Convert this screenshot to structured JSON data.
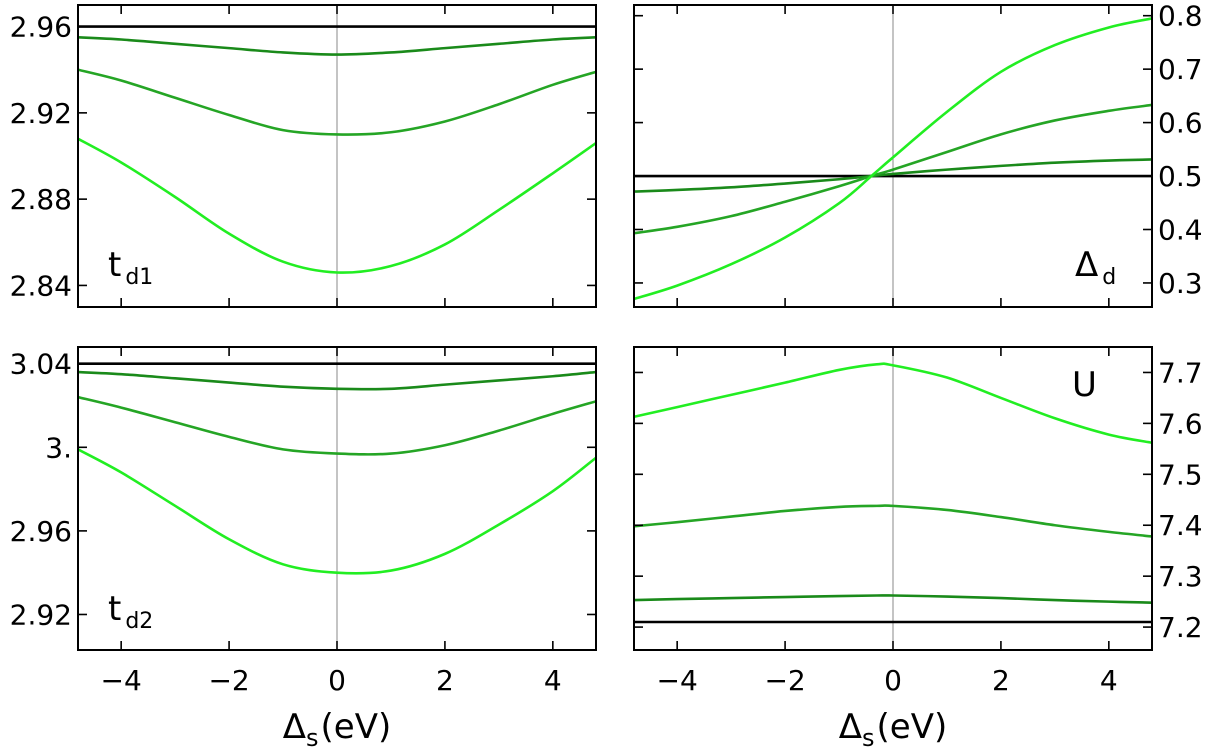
{
  "colors": {
    "black": "#000000",
    "dark_green": "#1a8a1a",
    "mid_green": "#25a525",
    "light_green": "#22ee22",
    "center_line": "#888888"
  },
  "chart_data": [
    {
      "type": "line",
      "panel": "top-left",
      "label_main": "t",
      "label_sub": "d1",
      "xlim": [
        -4.8,
        4.8
      ],
      "ylim": [
        2.83,
        2.97
      ],
      "y_axis_side": "left",
      "x_ticks": [
        -4,
        -2,
        0,
        2,
        4
      ],
      "x_ticks_show_labels": false,
      "y_ticks": [
        {
          "value": 2.84,
          "label": "2.84"
        },
        {
          "value": 2.88,
          "label": "2.88"
        },
        {
          "value": 2.92,
          "label": "2.92"
        },
        {
          "value": 2.96,
          "label": "2.96"
        }
      ],
      "series": [
        {
          "color_key": "black",
          "x": [
            -4.8,
            0,
            4.8
          ],
          "y": [
            2.96,
            2.96,
            2.96
          ]
        },
        {
          "color_key": "dark_green",
          "x": [
            -4.8,
            -4,
            -3,
            -2,
            -1,
            0,
            1,
            2,
            3,
            4,
            4.8
          ],
          "y": [
            2.955,
            2.954,
            2.952,
            2.95,
            2.948,
            2.947,
            2.948,
            2.95,
            2.952,
            2.954,
            2.955
          ]
        },
        {
          "color_key": "mid_green",
          "x": [
            -4.8,
            -4,
            -3,
            -2,
            -1,
            0,
            1,
            2,
            3,
            4,
            4.8
          ],
          "y": [
            2.94,
            2.935,
            2.927,
            2.919,
            2.912,
            2.91,
            2.911,
            2.916,
            2.924,
            2.933,
            2.939
          ]
        },
        {
          "color_key": "light_green",
          "x": [
            -4.8,
            -4,
            -3,
            -2,
            -1,
            0,
            1,
            2,
            3,
            4,
            4.8
          ],
          "y": [
            2.908,
            2.897,
            2.881,
            2.864,
            2.851,
            2.846,
            2.849,
            2.859,
            2.875,
            2.892,
            2.906
          ]
        }
      ]
    },
    {
      "type": "line",
      "panel": "top-right",
      "label_main": "Δ",
      "label_sub": "d",
      "xlim": [
        -4.8,
        4.8
      ],
      "ylim": [
        0.255,
        0.82
      ],
      "y_axis_side": "right",
      "x_ticks": [
        -4,
        -2,
        0,
        2,
        4
      ],
      "x_ticks_show_labels": false,
      "y_ticks": [
        {
          "value": 0.3,
          "label": "0.3"
        },
        {
          "value": 0.4,
          "label": "0.4"
        },
        {
          "value": 0.5,
          "label": "0.5"
        },
        {
          "value": 0.6,
          "label": "0.6"
        },
        {
          "value": 0.7,
          "label": "0.7"
        },
        {
          "value": 0.8,
          "label": "0.8"
        }
      ],
      "series": [
        {
          "color_key": "black",
          "x": [
            -4.8,
            0,
            4.8
          ],
          "y": [
            0.5,
            0.5,
            0.5
          ]
        },
        {
          "color_key": "dark_green",
          "x": [
            -4.8,
            -4,
            -3,
            -2,
            -1,
            -0.4,
            0,
            1,
            2,
            3,
            4,
            4.8
          ],
          "y": [
            0.471,
            0.474,
            0.479,
            0.486,
            0.494,
            0.5,
            0.504,
            0.512,
            0.519,
            0.525,
            0.529,
            0.531
          ]
        },
        {
          "color_key": "mid_green",
          "x": [
            -4.8,
            -4,
            -3,
            -2,
            -1,
            -0.4,
            0,
            1,
            2,
            3,
            4,
            4.8
          ],
          "y": [
            0.393,
            0.405,
            0.425,
            0.452,
            0.481,
            0.5,
            0.512,
            0.545,
            0.578,
            0.604,
            0.622,
            0.633
          ]
        },
        {
          "color_key": "light_green",
          "x": [
            -4.8,
            -4,
            -3,
            -2,
            -1,
            -0.4,
            0,
            1,
            2,
            3,
            4,
            4.8
          ],
          "y": [
            0.27,
            0.295,
            0.335,
            0.385,
            0.449,
            0.5,
            0.535,
            0.62,
            0.695,
            0.745,
            0.778,
            0.795
          ]
        }
      ]
    },
    {
      "type": "line",
      "panel": "bottom-left",
      "label_main": "t",
      "label_sub": "d2",
      "xlim": [
        -4.8,
        4.8
      ],
      "ylim": [
        2.903,
        3.048
      ],
      "y_axis_side": "left",
      "x_ticks": [
        -4,
        -2,
        0,
        2,
        4
      ],
      "x_ticks_show_labels": true,
      "x_tick_labels": [
        "−4",
        "−2",
        "0",
        "2",
        "4"
      ],
      "x_label_main": "Δ",
      "x_label_sub": "s",
      "x_label_unit": "(eV)",
      "y_ticks": [
        {
          "value": 2.92,
          "label": "2.92"
        },
        {
          "value": 2.96,
          "label": "2.96"
        },
        {
          "value": 3.0,
          "label": "3."
        },
        {
          "value": 3.04,
          "label": "3.04"
        }
      ],
      "series": [
        {
          "color_key": "black",
          "x": [
            -4.8,
            0,
            4.8
          ],
          "y": [
            3.04,
            3.04,
            3.04
          ]
        },
        {
          "color_key": "dark_green",
          "x": [
            -4.8,
            -4,
            -3,
            -2,
            -1,
            0,
            1,
            2,
            3,
            4,
            4.8
          ],
          "y": [
            3.036,
            3.035,
            3.033,
            3.031,
            3.029,
            3.028,
            3.028,
            3.03,
            3.032,
            3.034,
            3.036
          ]
        },
        {
          "color_key": "mid_green",
          "x": [
            -4.8,
            -4,
            -3,
            -2,
            -1,
            0,
            1,
            2,
            3,
            4,
            4.8
          ],
          "y": [
            3.024,
            3.019,
            3.012,
            3.005,
            2.999,
            2.997,
            2.997,
            3.001,
            3.008,
            3.016,
            3.022
          ]
        },
        {
          "color_key": "light_green",
          "x": [
            -4.8,
            -4,
            -3,
            -2,
            -1,
            0,
            1,
            2,
            3,
            4,
            4.8
          ],
          "y": [
            2.999,
            2.988,
            2.972,
            2.956,
            2.944,
            2.94,
            2.941,
            2.949,
            2.963,
            2.979,
            2.995
          ]
        }
      ]
    },
    {
      "type": "line",
      "panel": "bottom-right",
      "label_main": "U",
      "label_sub": "",
      "xlim": [
        -4.8,
        4.8
      ],
      "ylim": [
        7.155,
        7.75
      ],
      "y_axis_side": "right",
      "x_ticks": [
        -4,
        -2,
        0,
        2,
        4
      ],
      "x_ticks_show_labels": true,
      "x_tick_labels": [
        "−4",
        "−2",
        "0",
        "2",
        "4"
      ],
      "x_label_main": "Δ",
      "x_label_sub": "s",
      "x_label_unit": "(eV)",
      "y_ticks": [
        {
          "value": 7.2,
          "label": "7.2"
        },
        {
          "value": 7.3,
          "label": "7.3"
        },
        {
          "value": 7.4,
          "label": "7.4"
        },
        {
          "value": 7.5,
          "label": "7.5"
        },
        {
          "value": 7.6,
          "label": "7.6"
        },
        {
          "value": 7.7,
          "label": "7.7"
        }
      ],
      "series": [
        {
          "color_key": "black",
          "x": [
            -4.8,
            0,
            4.8
          ],
          "y": [
            7.21,
            7.21,
            7.21
          ]
        },
        {
          "color_key": "dark_green",
          "x": [
            -4.8,
            -4,
            -3,
            -2,
            -1,
            -0.3,
            0,
            1,
            2,
            3,
            4,
            4.8
          ],
          "y": [
            7.253,
            7.255,
            7.257,
            7.259,
            7.261,
            7.262,
            7.262,
            7.26,
            7.257,
            7.253,
            7.25,
            7.248
          ]
        },
        {
          "color_key": "mid_green",
          "x": [
            -4.8,
            -4,
            -3,
            -2,
            -1,
            -0.3,
            0,
            1,
            2,
            3,
            4,
            4.8
          ],
          "y": [
            7.398,
            7.406,
            7.417,
            7.428,
            7.436,
            7.438,
            7.438,
            7.43,
            7.416,
            7.4,
            7.387,
            7.378
          ]
        },
        {
          "color_key": "light_green",
          "x": [
            -4.8,
            -4,
            -3,
            -2,
            -1,
            -0.3,
            0,
            1,
            2,
            3,
            4,
            4.8
          ],
          "y": [
            7.613,
            7.632,
            7.656,
            7.68,
            7.705,
            7.716,
            7.714,
            7.69,
            7.65,
            7.61,
            7.578,
            7.562
          ]
        }
      ]
    }
  ]
}
